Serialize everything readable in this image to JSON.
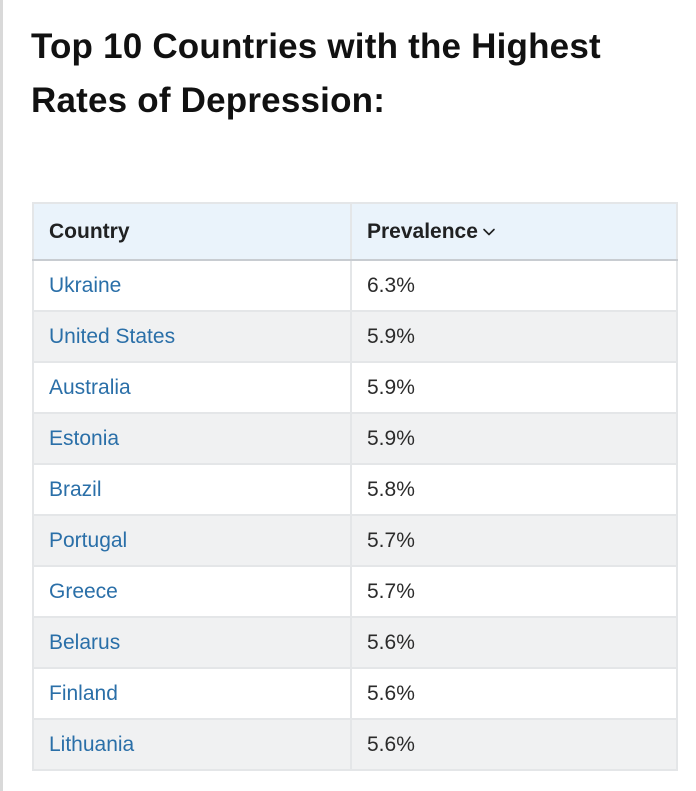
{
  "title": "Top 10 Countries with the Highest Rates of Depression:",
  "table": {
    "headers": {
      "country": "Country",
      "prevalence": "Prevalence"
    },
    "sort_icon": "chevron-down-icon",
    "rows": [
      {
        "country": "Ukraine",
        "prevalence": "6.3%"
      },
      {
        "country": "United States",
        "prevalence": "5.9%"
      },
      {
        "country": "Australia",
        "prevalence": "5.9%"
      },
      {
        "country": "Estonia",
        "prevalence": "5.9%"
      },
      {
        "country": "Brazil",
        "prevalence": "5.8%"
      },
      {
        "country": "Portugal",
        "prevalence": "5.7%"
      },
      {
        "country": "Greece",
        "prevalence": "5.7%"
      },
      {
        "country": "Belarus",
        "prevalence": "5.6%"
      },
      {
        "country": "Finland",
        "prevalence": "5.6%"
      },
      {
        "country": "Lithuania",
        "prevalence": "5.6%"
      }
    ]
  },
  "colors": {
    "link": "#2a6fa8",
    "header_bg": "#eaf3fb",
    "row_alt_bg": "#f0f1f2"
  }
}
